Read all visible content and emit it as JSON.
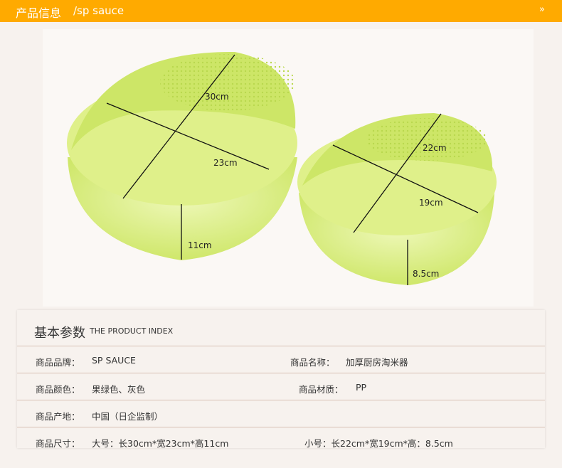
{
  "header": {
    "title": "产品信息",
    "subtitle": "/sp sauce",
    "more_icon": "double-chevron-right-icon",
    "more": "»"
  },
  "colors": {
    "header": "#ffaa00",
    "bowl": "#d8ee7a",
    "background": "#f7f2ee"
  },
  "photo": {
    "large": {
      "length": "30cm",
      "width": "23cm",
      "height": "11cm"
    },
    "small": {
      "length": "22cm",
      "width": "19cm",
      "height": "8.5cm"
    }
  },
  "table": {
    "title": "基本参数",
    "title_en": "THE PRODUCT INDEX",
    "rows": [
      {
        "k1": "商品品牌：",
        "v1": "SP SAUCE",
        "k2": "商品名称：",
        "v2": "加厚厨房淘米器"
      },
      {
        "k1": "商品颜色：",
        "v1": "果绿色、灰色",
        "k2": "商品材质：",
        "v2": "PP"
      },
      {
        "k1": "商品产地：",
        "v1": "中国（日企监制）"
      },
      {
        "k1": "商品尺寸：",
        "v1": "大号：长30cm*宽23cm*高11cm",
        "k2": "小号：长22cm*宽19cm*高：8.5cm"
      }
    ]
  }
}
